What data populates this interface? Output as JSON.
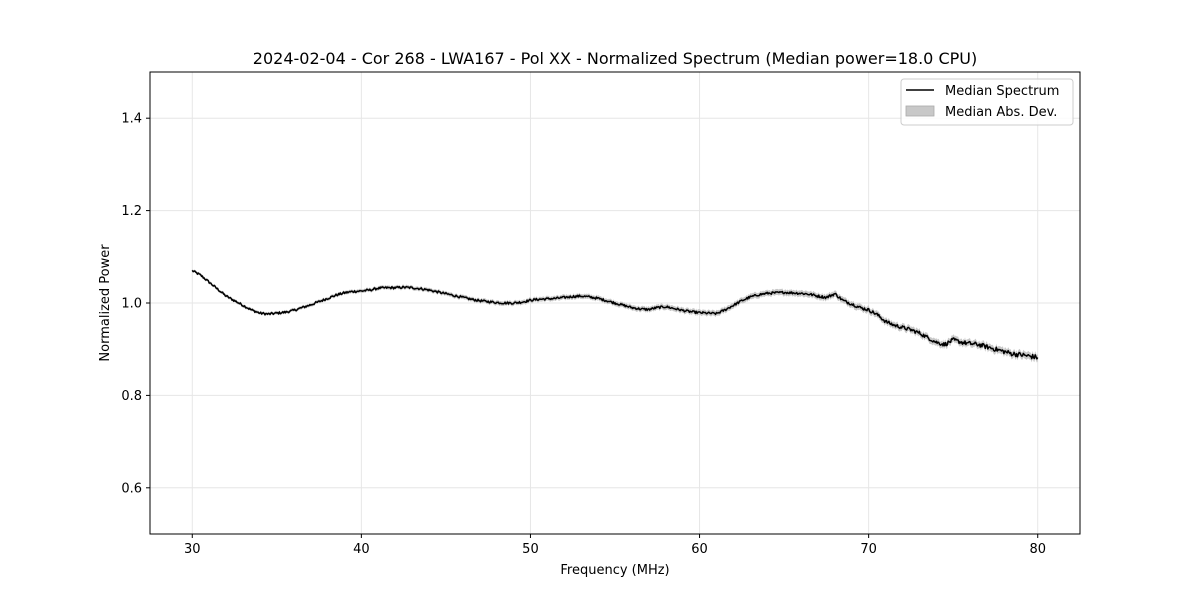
{
  "chart_data": {
    "type": "line",
    "title": "2024-02-04 - Cor 268 - LWA167 - Pol XX - Normalized Spectrum (Median power=18.0 CPU)",
    "xlabel": "Frequency (MHz)",
    "ylabel": "Normalized Power",
    "xlim": [
      27.5,
      82.5
    ],
    "ylim": [
      0.5,
      1.5
    ],
    "xticks": [
      30,
      40,
      50,
      60,
      70,
      80
    ],
    "yticks": [
      0.6,
      0.8,
      1.0,
      1.2,
      1.4
    ],
    "xtick_labels": [
      "30",
      "40",
      "50",
      "60",
      "70",
      "80"
    ],
    "ytick_labels": [
      "0.6",
      "0.8",
      "1.0",
      "1.2",
      "1.4"
    ],
    "grid": true,
    "legend_position": "top-right",
    "legend": [
      "Median Spectrum",
      "Median Abs. Dev."
    ],
    "series": [
      {
        "name": "Median Spectrum",
        "color": "#000000",
        "x": [
          30,
          30.5,
          31,
          31.5,
          32,
          32.5,
          33,
          33.5,
          34,
          34.5,
          35,
          35.5,
          36,
          36.5,
          37,
          37.5,
          38,
          38.5,
          39,
          39.5,
          40,
          40.5,
          41,
          41.5,
          42,
          42.5,
          43,
          43.5,
          44,
          44.5,
          45,
          45.5,
          46,
          46.5,
          47,
          47.5,
          48,
          48.5,
          49,
          49.5,
          50,
          50.5,
          51,
          51.5,
          52,
          52.5,
          53,
          53.5,
          54,
          54.5,
          55,
          55.5,
          56,
          56.5,
          57,
          57.5,
          58,
          58.5,
          59,
          59.5,
          60,
          60.5,
          61,
          61.5,
          62,
          62.5,
          63,
          63.5,
          64,
          64.5,
          65,
          65.5,
          66,
          66.5,
          67,
          67.5,
          68,
          68.5,
          69,
          69.5,
          70,
          70.5,
          71,
          71.5,
          72,
          72.5,
          73,
          73.5,
          74,
          74.5,
          75,
          75.5,
          76,
          76.5,
          77,
          77.5,
          78,
          78.5,
          79,
          79.5,
          80
        ],
        "values": [
          1.07,
          1.06,
          1.045,
          1.03,
          1.015,
          1.005,
          0.995,
          0.985,
          0.978,
          0.976,
          0.978,
          0.98,
          0.984,
          0.99,
          0.996,
          1.003,
          1.01,
          1.017,
          1.022,
          1.025,
          1.026,
          1.028,
          1.032,
          1.033,
          1.033,
          1.034,
          1.033,
          1.031,
          1.028,
          1.024,
          1.02,
          1.016,
          1.012,
          1.008,
          1.005,
          1.003,
          1.001,
          1.0,
          1.0,
          1.002,
          1.006,
          1.008,
          1.009,
          1.01,
          1.012,
          1.014,
          1.015,
          1.013,
          1.01,
          1.005,
          1.0,
          0.995,
          0.99,
          0.987,
          0.986,
          0.99,
          0.992,
          0.988,
          0.984,
          0.981,
          0.979,
          0.978,
          0.977,
          0.985,
          0.995,
          1.005,
          1.013,
          1.018,
          1.021,
          1.022,
          1.023,
          1.022,
          1.021,
          1.019,
          1.015,
          1.012,
          1.02,
          1.005,
          0.998,
          0.99,
          0.985,
          0.975,
          0.96,
          0.952,
          0.947,
          0.942,
          0.935,
          0.925,
          0.915,
          0.91,
          0.92,
          0.915,
          0.912,
          0.91,
          0.905,
          0.9,
          0.895,
          0.89,
          0.888,
          0.885,
          0.882
        ]
      }
    ],
    "band": {
      "name": "Median Abs. Dev.",
      "color": "#c8c8c8",
      "half_width_start": 0.003,
      "half_width_end": 0.008
    }
  }
}
